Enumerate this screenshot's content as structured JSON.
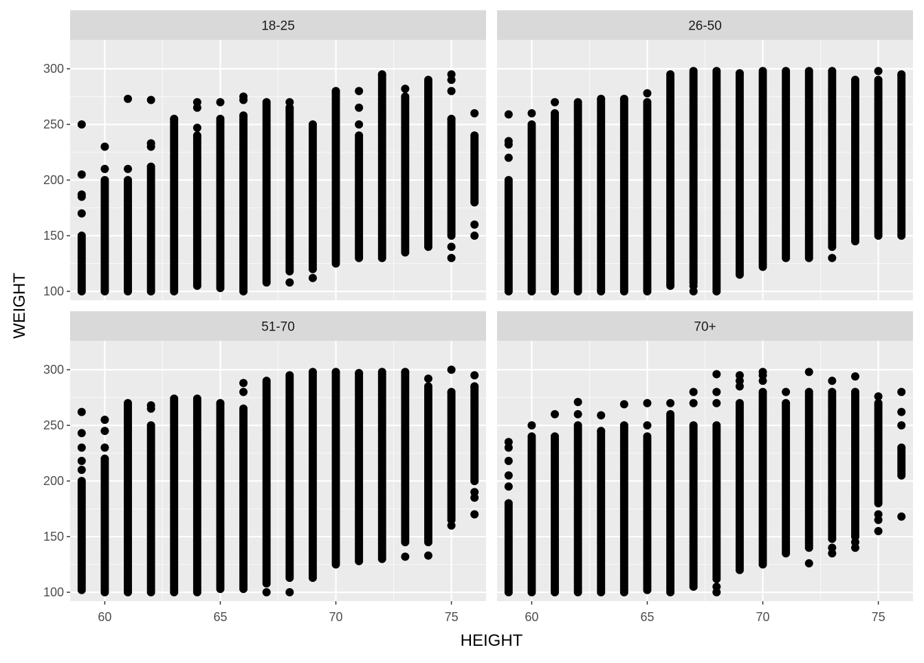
{
  "chart_data": {
    "type": "scatter",
    "facets": [
      "18-25",
      "26-50",
      "51-70",
      "70+"
    ],
    "xlabel": "HEIGHT",
    "ylabel": "WEIGHT",
    "xlim": [
      58.5,
      76.5
    ],
    "ylim": [
      92,
      326
    ],
    "x_ticks": [
      60,
      65,
      70,
      75
    ],
    "y_ticks": [
      100,
      150,
      200,
      250,
      300
    ],
    "grid": true,
    "point_color": "#000000",
    "panel_background": "#ebebeb",
    "strip_background": "#d9d9d9",
    "x_values": [
      59,
      60,
      61,
      62,
      63,
      64,
      65,
      66,
      67,
      68,
      69,
      70,
      71,
      72,
      73,
      74,
      75,
      76
    ],
    "series": [
      {
        "panel": "18-25",
        "columns": [
          {
            "x": 59,
            "y_range": [
              100,
              150
            ],
            "outliers": [
              170,
              185,
              187,
              205,
              250
            ]
          },
          {
            "x": 60,
            "y_range": [
              100,
              200
            ],
            "outliers": [
              210,
              230
            ]
          },
          {
            "x": 61,
            "y_range": [
              100,
              200
            ],
            "outliers": [
              210,
              273
            ]
          },
          {
            "x": 62,
            "y_range": [
              100,
              212
            ],
            "outliers": [
              230,
              233,
              272
            ]
          },
          {
            "x": 63,
            "y_range": [
              100,
              255
            ],
            "outliers": []
          },
          {
            "x": 64,
            "y_range": [
              105,
              240
            ],
            "outliers": [
              247,
              265,
              270
            ]
          },
          {
            "x": 65,
            "y_range": [
              103,
              255
            ],
            "outliers": [
              270
            ]
          },
          {
            "x": 66,
            "y_range": [
              100,
              258
            ],
            "outliers": [
              272,
              275
            ]
          },
          {
            "x": 67,
            "y_range": [
              110,
              270
            ],
            "outliers": [
              108
            ]
          },
          {
            "x": 68,
            "y_range": [
              118,
              265
            ],
            "outliers": [
              108,
              270
            ]
          },
          {
            "x": 69,
            "y_range": [
              120,
              250
            ],
            "outliers": [
              112
            ]
          },
          {
            "x": 70,
            "y_range": [
              125,
              280
            ],
            "outliers": []
          },
          {
            "x": 71,
            "y_range": [
              130,
              240
            ],
            "outliers": [
              250,
              265,
              280
            ]
          },
          {
            "x": 72,
            "y_range": [
              130,
              295
            ],
            "outliers": []
          },
          {
            "x": 73,
            "y_range": [
              135,
              275
            ],
            "outliers": [
              282
            ]
          },
          {
            "x": 74,
            "y_range": [
              140,
              290
            ],
            "outliers": []
          },
          {
            "x": 75,
            "y_range": [
              150,
              255
            ],
            "outliers": [
              130,
              140,
              280,
              290,
              295
            ]
          },
          {
            "x": 76,
            "y_range": [
              180,
              240
            ],
            "outliers": [
              150,
              160,
              260
            ]
          }
        ]
      },
      {
        "panel": "26-50",
        "columns": [
          {
            "x": 59,
            "y_range": [
              100,
              200
            ],
            "outliers": [
              220,
              232,
              235,
              259
            ]
          },
          {
            "x": 60,
            "y_range": [
              100,
              250
            ],
            "outliers": [
              260
            ]
          },
          {
            "x": 61,
            "y_range": [
              100,
              260
            ],
            "outliers": [
              270
            ]
          },
          {
            "x": 62,
            "y_range": [
              100,
              270
            ],
            "outliers": []
          },
          {
            "x": 63,
            "y_range": [
              100,
              273
            ],
            "outliers": []
          },
          {
            "x": 64,
            "y_range": [
              100,
              273
            ],
            "outliers": []
          },
          {
            "x": 65,
            "y_range": [
              100,
              270
            ],
            "outliers": [
              278
            ]
          },
          {
            "x": 66,
            "y_range": [
              105,
              295
            ],
            "outliers": []
          },
          {
            "x": 67,
            "y_range": [
              108,
              298
            ],
            "outliers": [
              100,
              105
            ]
          },
          {
            "x": 68,
            "y_range": [
              100,
              298
            ],
            "outliers": []
          },
          {
            "x": 69,
            "y_range": [
              115,
              296
            ],
            "outliers": []
          },
          {
            "x": 70,
            "y_range": [
              122,
              298
            ],
            "outliers": []
          },
          {
            "x": 71,
            "y_range": [
              130,
              298
            ],
            "outliers": []
          },
          {
            "x": 72,
            "y_range": [
              130,
              298
            ],
            "outliers": []
          },
          {
            "x": 73,
            "y_range": [
              140,
              298
            ],
            "outliers": [
              130
            ]
          },
          {
            "x": 74,
            "y_range": [
              145,
              290
            ],
            "outliers": []
          },
          {
            "x": 75,
            "y_range": [
              150,
              290
            ],
            "outliers": [
              298
            ]
          },
          {
            "x": 76,
            "y_range": [
              150,
              295
            ],
            "outliers": []
          }
        ]
      },
      {
        "panel": "51-70",
        "columns": [
          {
            "x": 59,
            "y_range": [
              102,
              200
            ],
            "outliers": [
              210,
              218,
              230,
              243,
              262
            ]
          },
          {
            "x": 60,
            "y_range": [
              100,
              220
            ],
            "outliers": [
              230,
              245,
              255
            ]
          },
          {
            "x": 61,
            "y_range": [
              100,
              270
            ],
            "outliers": []
          },
          {
            "x": 62,
            "y_range": [
              100,
              250
            ],
            "outliers": [
              265,
              268
            ]
          },
          {
            "x": 63,
            "y_range": [
              100,
              274
            ],
            "outliers": []
          },
          {
            "x": 64,
            "y_range": [
              100,
              274
            ],
            "outliers": []
          },
          {
            "x": 65,
            "y_range": [
              103,
              270
            ],
            "outliers": []
          },
          {
            "x": 66,
            "y_range": [
              103,
              265
            ],
            "outliers": [
              280,
              288
            ]
          },
          {
            "x": 67,
            "y_range": [
              108,
              290
            ],
            "outliers": [
              100
            ]
          },
          {
            "x": 68,
            "y_range": [
              113,
              295
            ],
            "outliers": [
              100
            ]
          },
          {
            "x": 69,
            "y_range": [
              113,
              298
            ],
            "outliers": []
          },
          {
            "x": 70,
            "y_range": [
              125,
              298
            ],
            "outliers": []
          },
          {
            "x": 71,
            "y_range": [
              128,
              297
            ],
            "outliers": []
          },
          {
            "x": 72,
            "y_range": [
              130,
              298
            ],
            "outliers": []
          },
          {
            "x": 73,
            "y_range": [
              145,
              298
            ],
            "outliers": [
              132
            ]
          },
          {
            "x": 74,
            "y_range": [
              145,
              285
            ],
            "outliers": [
              133,
              292
            ]
          },
          {
            "x": 75,
            "y_range": [
              165,
              280
            ],
            "outliers": [
              160,
              300
            ]
          },
          {
            "x": 76,
            "y_range": [
              200,
              285
            ],
            "outliers": [
              170,
              185,
              190,
              295
            ]
          }
        ]
      },
      {
        "panel": "70+",
        "columns": [
          {
            "x": 59,
            "y_range": [
              100,
              180
            ],
            "outliers": [
              195,
              205,
              218,
              230,
              235
            ]
          },
          {
            "x": 60,
            "y_range": [
              100,
              240
            ],
            "outliers": [
              250
            ]
          },
          {
            "x": 61,
            "y_range": [
              100,
              240
            ],
            "outliers": [
              260
            ]
          },
          {
            "x": 62,
            "y_range": [
              100,
              250
            ],
            "outliers": [
              260,
              271
            ]
          },
          {
            "x": 63,
            "y_range": [
              100,
              245
            ],
            "outliers": [
              259
            ]
          },
          {
            "x": 64,
            "y_range": [
              100,
              250
            ],
            "outliers": [
              269
            ]
          },
          {
            "x": 65,
            "y_range": [
              102,
              240
            ],
            "outliers": [
              250,
              270
            ]
          },
          {
            "x": 66,
            "y_range": [
              100,
              260
            ],
            "outliers": [
              270
            ]
          },
          {
            "x": 67,
            "y_range": [
              105,
              250
            ],
            "outliers": [
              270,
              280
            ]
          },
          {
            "x": 68,
            "y_range": [
              112,
              250
            ],
            "outliers": [
              100,
              105,
              270,
              280,
              296
            ]
          },
          {
            "x": 69,
            "y_range": [
              120,
              270
            ],
            "outliers": [
              285,
              290,
              295
            ]
          },
          {
            "x": 70,
            "y_range": [
              125,
              280
            ],
            "outliers": [
              290,
              295,
              298
            ]
          },
          {
            "x": 71,
            "y_range": [
              135,
              270
            ],
            "outliers": [
              280
            ]
          },
          {
            "x": 72,
            "y_range": [
              140,
              280
            ],
            "outliers": [
              126,
              298
            ]
          },
          {
            "x": 73,
            "y_range": [
              148,
              280
            ],
            "outliers": [
              135,
              140,
              290
            ]
          },
          {
            "x": 74,
            "y_range": [
              150,
              280
            ],
            "outliers": [
              140,
              145,
              294
            ]
          },
          {
            "x": 75,
            "y_range": [
              180,
              270
            ],
            "outliers": [
              155,
              165,
              170,
              276
            ]
          },
          {
            "x": 76,
            "y_range": [
              205,
              230
            ],
            "outliers": [
              168,
              250,
              262,
              280
            ]
          }
        ]
      }
    ]
  }
}
